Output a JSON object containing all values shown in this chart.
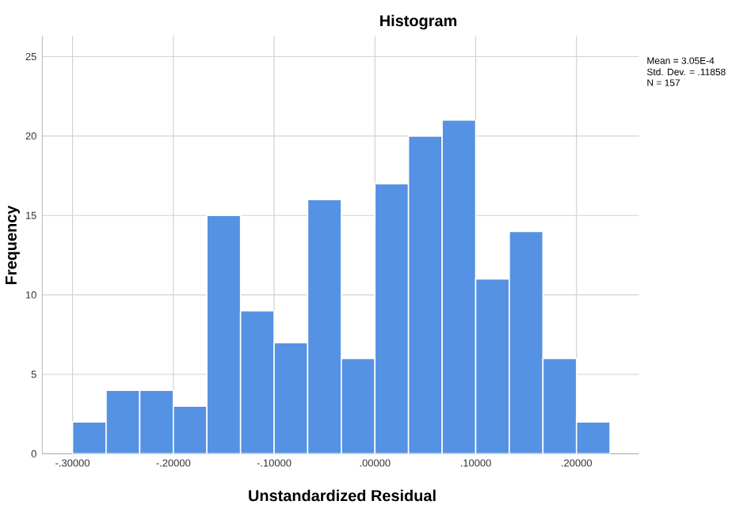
{
  "chart_data": {
    "type": "histogram",
    "title": "Histogram",
    "xlabel": "Unstandardized Residual",
    "ylabel": "Frequency",
    "bins": [
      -0.3,
      -0.2667,
      -0.2333,
      -0.2,
      -0.1667,
      -0.1333,
      -0.1,
      -0.0667,
      -0.0333,
      0,
      0.0333,
      0.0667,
      0.1,
      0.1333,
      0.1667,
      0.2,
      0.2333
    ],
    "values": [
      2,
      4,
      4,
      3,
      15,
      9,
      7,
      16,
      6,
      17,
      20,
      21,
      11,
      14,
      6,
      2
    ],
    "color": "#5592e3",
    "xlim": [
      -0.33,
      0.262
    ],
    "ylim": [
      0,
      26.3
    ],
    "xticks": [
      {
        "value": -0.3,
        "label": "-.30000"
      },
      {
        "value": -0.2,
        "label": "-.20000"
      },
      {
        "value": -0.1,
        "label": "-.10000"
      },
      {
        "value": 0,
        "label": ".00000"
      },
      {
        "value": 0.1,
        "label": ".10000"
      },
      {
        "value": 0.2,
        "label": ".20000"
      }
    ],
    "yticks": [
      0,
      5,
      10,
      15,
      20,
      25
    ],
    "grid": true,
    "annotations": [
      "Mean = 3.05E-4",
      "Std. Dev. = .11858",
      "N = 157"
    ]
  }
}
